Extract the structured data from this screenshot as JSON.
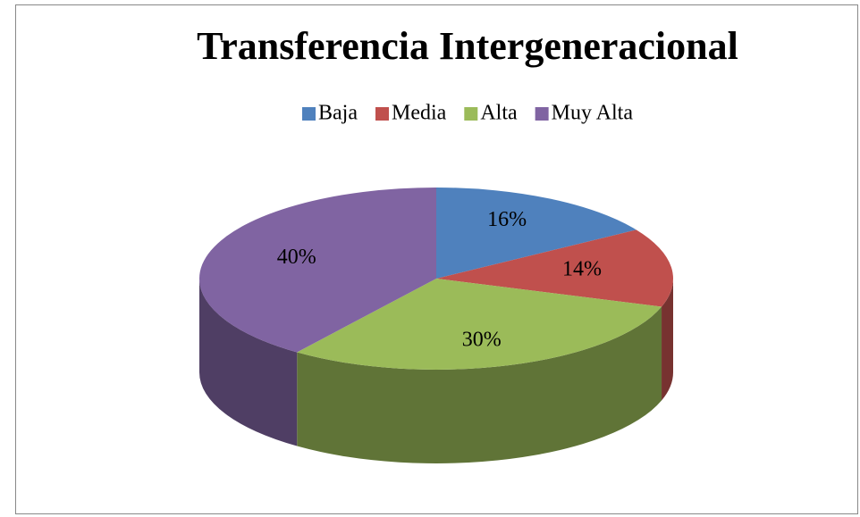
{
  "chart_data": {
    "type": "pie",
    "title": "Transferencia Intergeneracional",
    "categories": [
      "Baja",
      "Media",
      "Alta",
      "Muy Alta"
    ],
    "values": [
      16,
      14,
      30,
      40
    ],
    "value_labels": [
      "16%",
      "14%",
      "30%",
      "40%"
    ],
    "colors": [
      "#4f81bd",
      "#c0504d",
      "#9bbb59",
      "#8064a2"
    ],
    "legend": "top"
  }
}
